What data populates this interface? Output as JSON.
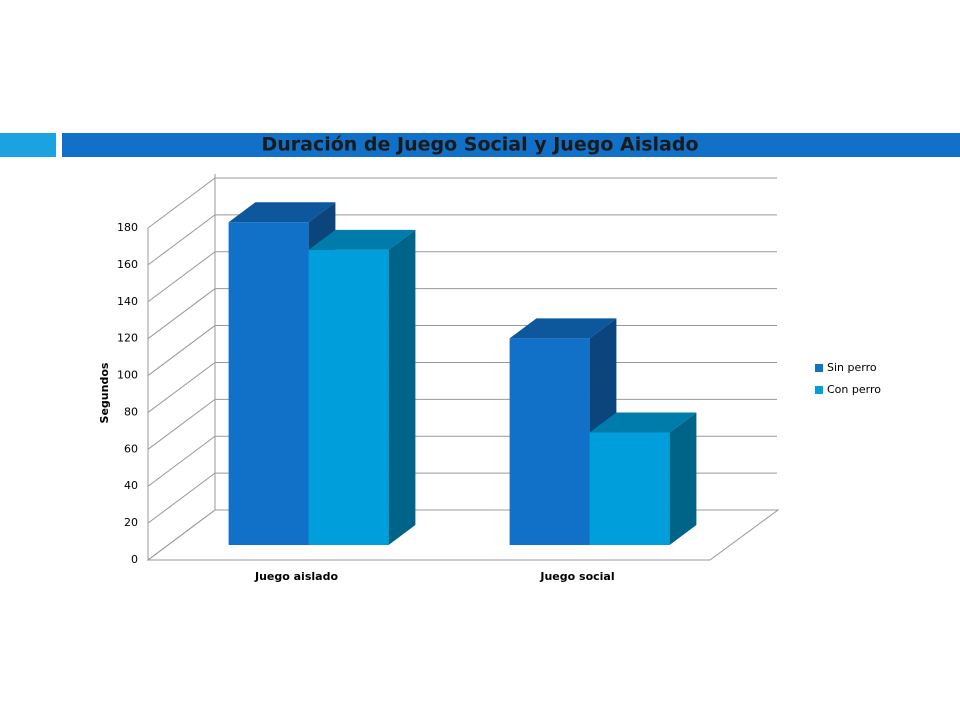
{
  "chart_data": {
    "type": "bar3d",
    "title": "Duración de Juego Social y Juego Aislado",
    "y_label": "Segundos",
    "categories": [
      "Juego aislado",
      "Juego social"
    ],
    "series": [
      {
        "name": "Sin perro",
        "color": "#1170c8",
        "values": [
          175,
          112
        ]
      },
      {
        "name": "Con perro",
        "color": "#009fdb",
        "values": [
          160,
          61
        ]
      }
    ],
    "ylim": [
      0,
      180
    ],
    "yticks": [
      0,
      20,
      40,
      60,
      80,
      100,
      120,
      140,
      160,
      180
    ],
    "grid": true,
    "legend": "right"
  }
}
